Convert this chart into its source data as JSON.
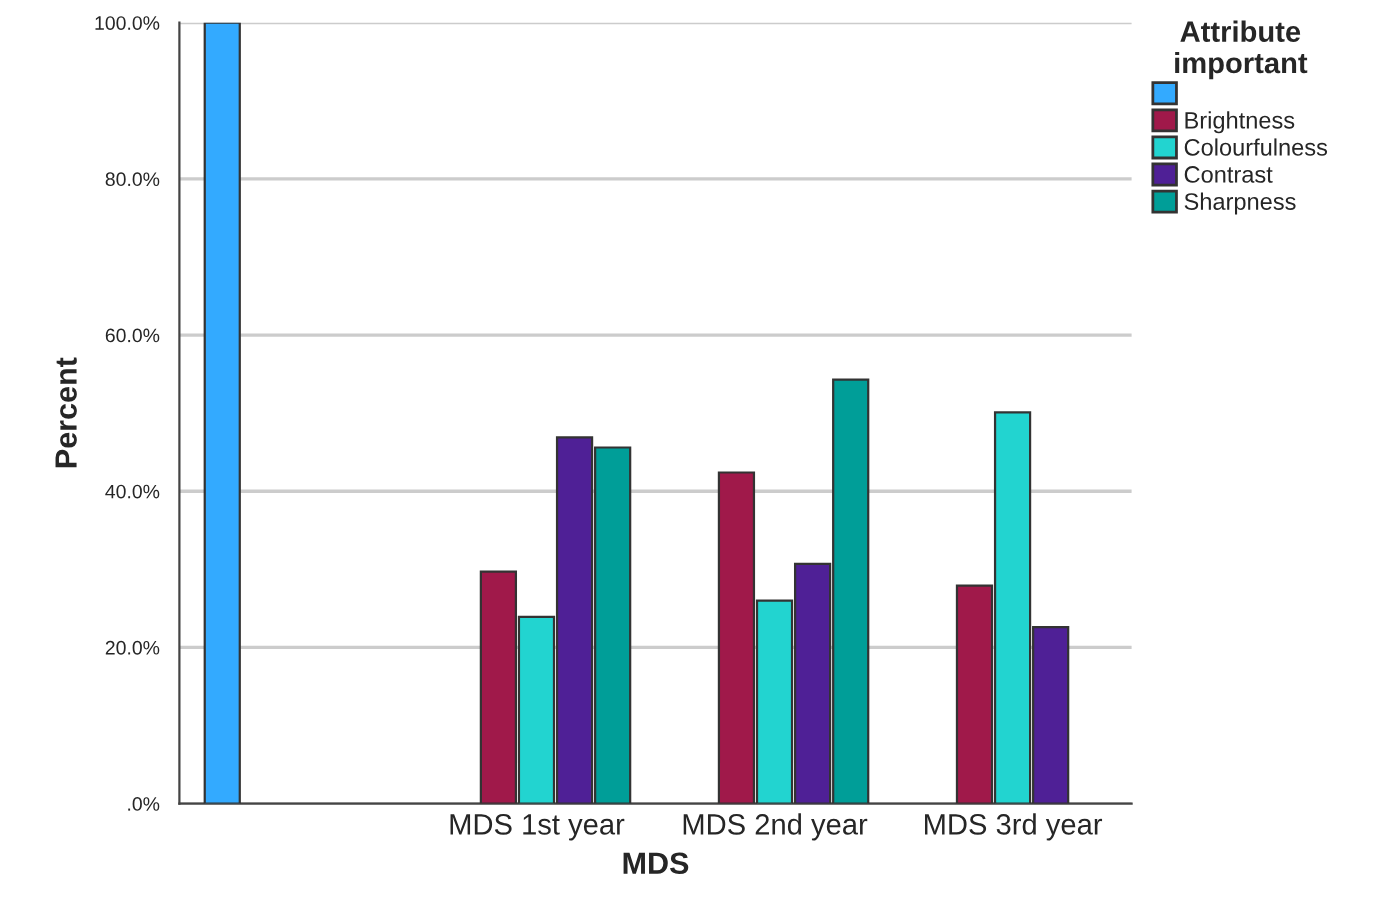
{
  "chart_data": {
    "type": "bar",
    "xlabel": "MDS",
    "ylabel": "Percent",
    "legend_title": "Attribute\nimportant",
    "categories": [
      null,
      "MDS 1st year",
      "MDS 2nd year",
      "MDS 3rd year"
    ],
    "series": [
      {
        "color": "#33aaff",
        "values": [
          100,
          null,
          null,
          null
        ]
      },
      {
        "name": "Brightness",
        "color": "#a0194a",
        "values": [
          null,
          29.7,
          42.4,
          27.9
        ]
      },
      {
        "name": "Colourfulness",
        "color": "#22d4d0",
        "values": [
          null,
          23.9,
          26.0,
          50.1
        ]
      },
      {
        "name": "Contrast",
        "color": "#4f2096",
        "values": [
          null,
          46.9,
          30.7,
          22.6
        ]
      },
      {
        "name": "Sharpness",
        "color": "#009e98",
        "values": [
          null,
          45.6,
          54.3,
          null
        ]
      }
    ],
    "ylim": [
      0,
      100
    ],
    "yticks": [
      {
        "value": 0,
        "label": ".0%"
      },
      {
        "value": 20,
        "label": "20.0%"
      },
      {
        "value": 40,
        "label": "40.0%"
      },
      {
        "value": 60,
        "label": "60.0%"
      },
      {
        "value": 80,
        "label": "80.0%"
      },
      {
        "value": 100,
        "label": "100.0%"
      }
    ],
    "grid": "y",
    "legend": "top right"
  }
}
